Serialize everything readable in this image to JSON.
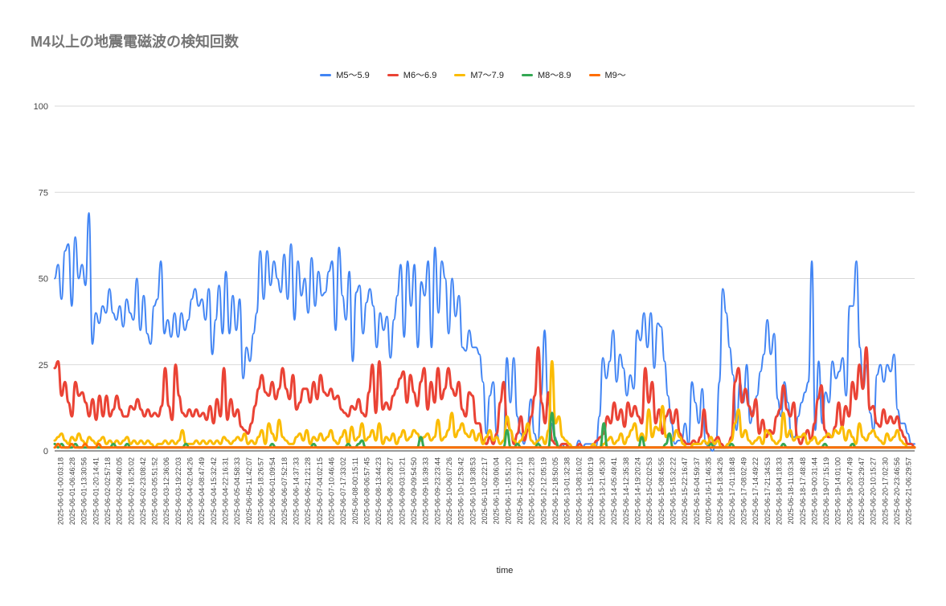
{
  "chart_data": {
    "type": "line",
    "title": "M4以上の地震電磁波の検知回数",
    "xlabel": "time",
    "ylabel": "",
    "ylim": [
      0,
      100
    ],
    "y_ticks": [
      0,
      25,
      50,
      75,
      100
    ],
    "legend_position": "top-center",
    "x_ticks": [
      "2025-06-01-00:03:18",
      "2025-06-01-06:46:28",
      "2025-06-01-13:30:56",
      "2025-06-01-20:14:41",
      "2025-06-02-02:57:18",
      "2025-06-02-09:40:05",
      "2025-06-02-16:25:02",
      "2025-06-02-23:08:42",
      "2025-06-03-05:51:52",
      "2025-06-03-12:36:06",
      "2025-06-03-19:22:03",
      "2025-06-04-02:04:26",
      "2025-06-04-08:47:49",
      "2025-06-04-15:32:42",
      "2025-06-04-22:16:31",
      "2025-06-05-04:58:33",
      "2025-06-05-11:42:07",
      "2025-06-05-18:26:57",
      "2025-06-06-01:09:54",
      "2025-06-06-07:52:18",
      "2025-06-06-14:37:33",
      "2025-06-06-21:21:28",
      "2025-06-07-04:02:15",
      "2025-06-07-10:46:46",
      "2025-06-07-17:33:02",
      "2025-06-08-00:15:11",
      "2025-06-08-06:57:45",
      "2025-06-08-13:44:23",
      "2025-06-08-20:28:27",
      "2025-06-09-03:10:21",
      "2025-06-09-09:54:50",
      "2025-06-09-16:39:33",
      "2025-06-09-23:23:44",
      "2025-06-10-06:07:26",
      "2025-06-10-12:53:42",
      "2025-06-10-19:38:53",
      "2025-06-11-02:22:17",
      "2025-06-11-09:06:04",
      "2025-06-11-15:51:20",
      "2025-06-11-22:37:10",
      "2025-06-12-05:21:28",
      "2025-06-12-12:05:19",
      "2025-06-12-18:50:05",
      "2025-06-13-01:32:38",
      "2025-06-13-08:16:02",
      "2025-06-13-15:00:19",
      "2025-06-13-21:45:30",
      "2025-06-14-05:49:41",
      "2025-06-14-12:35:38",
      "2025-06-14-19:20:24",
      "2025-06-15-02:02:53",
      "2025-06-15-08:45:55",
      "2025-06-15-15:32:22",
      "2025-06-15-22:16:47",
      "2025-06-16-04:59:37",
      "2025-06-16-11:46:35",
      "2025-06-16-18:34:26",
      "2025-06-17-01:18:48",
      "2025-06-17-08:02:49",
      "2025-06-17-14:49:22",
      "2025-06-17-21:34:53",
      "2025-06-18-04:18:33",
      "2025-06-18-11:03:34",
      "2025-06-18-17:48:48",
      "2025-06-19-00:31:44",
      "2025-06-19-07:15:19",
      "2025-06-19-14:01:00",
      "2025-06-19-20:47:49",
      "2025-06-20-03:29:47",
      "2025-06-20-10:15:27",
      "2025-06-20-17:02:30",
      "2025-06-20-23:46:56",
      "2025-06-21-06:29:57"
    ],
    "series": [
      {
        "name": "M5〜5.9",
        "color": "#4285f4",
        "values": [
          50,
          54,
          44,
          58,
          60,
          42,
          62,
          50,
          54,
          48,
          69,
          31,
          40,
          37,
          42,
          40,
          47,
          40,
          38,
          42,
          36,
          44,
          40,
          38,
          50,
          35,
          45,
          34,
          31,
          42,
          44,
          55,
          34,
          38,
          33,
          40,
          33,
          40,
          35,
          38,
          44,
          47,
          42,
          44,
          38,
          47,
          28,
          38,
          48,
          34,
          52,
          34,
          45,
          35,
          44,
          21,
          30,
          26,
          34,
          40,
          58,
          44,
          58,
          48,
          55,
          50,
          46,
          57,
          44,
          60,
          38,
          55,
          45,
          50,
          40,
          56,
          42,
          52,
          45,
          46,
          52,
          55,
          35,
          59,
          45,
          38,
          52,
          26,
          46,
          48,
          34,
          43,
          47,
          42,
          30,
          40,
          35,
          39,
          27,
          38,
          45,
          54,
          33,
          55,
          42,
          54,
          30,
          49,
          45,
          55,
          30,
          59,
          40,
          55,
          50,
          34,
          50,
          39,
          45,
          30,
          29,
          35,
          30,
          30,
          28,
          20,
          5,
          16,
          20,
          5,
          2,
          3,
          27,
          14,
          27,
          10,
          5,
          2,
          8,
          15,
          5,
          2,
          16,
          35,
          14,
          8,
          4,
          1,
          2,
          1,
          2,
          1,
          1,
          3,
          1,
          2,
          2,
          2,
          1,
          10,
          27,
          21,
          26,
          35,
          20,
          28,
          24,
          16,
          22,
          18,
          35,
          32,
          40,
          30,
          40,
          24,
          37,
          36,
          26,
          16,
          8,
          2,
          3,
          3,
          8,
          2,
          20,
          14,
          8,
          18,
          2,
          1,
          0,
          2,
          20,
          47,
          40,
          30,
          22,
          6,
          20,
          14,
          25,
          8,
          12,
          16,
          23,
          28,
          38,
          28,
          34,
          15,
          10,
          20,
          14,
          4,
          4,
          10,
          14,
          17,
          20,
          55,
          6,
          26,
          8,
          17,
          14,
          26,
          21,
          23,
          27,
          16,
          42,
          42,
          55,
          30,
          18,
          25,
          11,
          6,
          22,
          25,
          20,
          25,
          23,
          28,
          12,
          8,
          8,
          5,
          2,
          2
        ]
      },
      {
        "name": "M6〜6.9",
        "color": "#ea4335",
        "values": [
          24,
          26,
          16,
          20,
          14,
          10,
          20,
          16,
          17,
          14,
          10,
          15,
          9,
          16,
          10,
          16,
          10,
          12,
          16,
          12,
          10,
          10,
          13,
          12,
          15,
          12,
          10,
          12,
          10,
          11,
          10,
          13,
          24,
          13,
          9,
          25,
          16,
          11,
          10,
          12,
          10,
          12,
          10,
          11,
          9,
          13,
          8,
          15,
          10,
          24,
          9,
          15,
          10,
          12,
          7,
          6,
          5,
          8,
          13,
          18,
          22,
          17,
          16,
          20,
          15,
          18,
          24,
          18,
          15,
          22,
          12,
          14,
          18,
          18,
          14,
          20,
          15,
          22,
          17,
          16,
          18,
          15,
          16,
          12,
          11,
          10,
          13,
          12,
          15,
          11,
          10,
          17,
          25,
          11,
          26,
          12,
          14,
          12,
          16,
          18,
          21,
          23,
          14,
          22,
          17,
          13,
          20,
          24,
          12,
          20,
          14,
          24,
          15,
          18,
          24,
          18,
          16,
          20,
          12,
          10,
          17,
          16,
          8,
          8,
          3,
          2,
          4,
          2,
          5,
          14,
          20,
          8,
          6,
          2,
          5,
          10,
          3,
          6,
          10,
          16,
          30,
          14,
          8,
          17,
          3,
          2,
          1,
          2,
          2,
          1,
          1,
          1,
          2,
          1,
          1,
          1,
          2,
          3,
          4,
          5,
          10,
          8,
          14,
          9,
          12,
          7,
          14,
          10,
          13,
          10,
          8,
          24,
          14,
          20,
          8,
          12,
          5,
          10,
          12,
          8,
          12,
          5,
          3,
          2,
          2,
          3,
          2,
          4,
          12,
          5,
          2,
          3,
          4,
          2,
          1,
          2,
          4,
          20,
          24,
          14,
          18,
          13,
          10,
          15,
          5,
          9,
          4,
          6,
          5,
          10,
          12,
          19,
          12,
          10,
          14,
          4,
          2,
          4,
          6,
          3,
          8,
          15,
          19,
          6,
          4,
          4,
          7,
          14,
          7,
          13,
          10,
          20,
          15,
          25,
          18,
          30,
          12,
          13,
          8,
          7,
          12,
          8,
          10,
          8,
          10,
          6,
          4,
          2,
          2,
          1
        ]
      },
      {
        "name": "M7〜7.9",
        "color": "#fbbc04",
        "values": [
          3,
          4,
          5,
          3,
          2,
          4,
          3,
          5,
          3,
          2,
          4,
          3,
          2,
          3,
          4,
          2,
          3,
          2,
          3,
          2,
          3,
          4,
          2,
          3,
          2,
          3,
          2,
          3,
          2,
          1,
          2,
          2,
          3,
          2,
          3,
          2,
          3,
          6,
          2,
          2,
          2,
          3,
          2,
          3,
          2,
          3,
          2,
          3,
          2,
          4,
          3,
          2,
          3,
          4,
          3,
          5,
          2,
          3,
          2,
          4,
          6,
          2,
          8,
          5,
          3,
          9,
          4,
          3,
          2,
          2,
          4,
          5,
          3,
          6,
          2,
          4,
          3,
          5,
          3,
          4,
          6,
          3,
          2,
          4,
          6,
          2,
          7,
          3,
          4,
          8,
          3,
          4,
          6,
          3,
          8,
          2,
          4,
          3,
          5,
          2,
          4,
          6,
          3,
          4,
          6,
          5,
          3,
          4,
          5,
          3,
          4,
          9,
          3,
          4,
          6,
          11,
          4,
          6,
          8,
          5,
          4,
          6,
          3,
          5,
          2,
          4,
          6,
          3,
          4,
          2,
          3,
          10,
          6,
          3,
          2,
          3,
          5,
          8,
          3,
          2,
          3,
          4,
          2,
          6,
          26,
          8,
          10,
          4,
          3,
          2,
          1,
          1,
          1,
          1,
          1,
          1,
          2,
          1,
          1,
          2,
          3,
          4,
          2,
          3,
          5,
          2,
          4,
          6,
          8,
          3,
          5,
          3,
          12,
          4,
          7,
          6,
          13,
          4,
          5,
          3,
          6,
          4,
          2,
          1,
          1,
          2,
          2,
          2,
          3,
          2,
          4,
          2,
          3,
          1,
          1,
          2,
          3,
          8,
          12,
          4,
          6,
          3,
          2,
          3,
          4,
          2,
          6,
          5,
          3,
          2,
          3,
          11,
          4,
          6,
          3,
          4,
          4,
          5,
          2,
          3,
          4,
          2,
          3,
          4,
          5,
          4,
          6,
          5,
          7,
          3,
          6,
          4,
          2,
          8,
          4,
          3,
          5,
          6,
          4,
          3,
          2,
          5,
          3,
          4,
          6,
          3,
          2,
          1,
          1,
          1
        ]
      },
      {
        "name": "M8〜8.9",
        "color": "#34a853",
        "values": [
          2,
          1,
          2,
          1,
          1,
          1,
          2,
          1,
          1,
          1,
          1,
          1,
          1,
          1,
          1,
          1,
          1,
          2,
          1,
          1,
          1,
          2,
          1,
          1,
          1,
          1,
          1,
          1,
          1,
          1,
          1,
          1,
          1,
          1,
          1,
          1,
          1,
          1,
          2,
          1,
          1,
          1,
          1,
          1,
          1,
          1,
          1,
          1,
          1,
          1,
          1,
          1,
          1,
          1,
          1,
          1,
          1,
          1,
          1,
          1,
          1,
          1,
          1,
          2,
          1,
          1,
          1,
          1,
          1,
          1,
          1,
          1,
          1,
          1,
          1,
          2,
          1,
          1,
          1,
          1,
          1,
          1,
          1,
          1,
          1,
          2,
          1,
          1,
          2,
          3,
          1,
          1,
          1,
          1,
          1,
          1,
          1,
          1,
          1,
          1,
          1,
          1,
          1,
          1,
          1,
          1,
          4,
          1,
          1,
          1,
          1,
          1,
          1,
          1,
          1,
          1,
          1,
          1,
          1,
          1,
          1,
          1,
          1,
          1,
          1,
          1,
          1,
          1,
          1,
          1,
          1,
          6,
          1,
          1,
          2,
          1,
          1,
          1,
          1,
          1,
          2,
          1,
          1,
          1,
          11,
          3,
          1,
          1,
          1,
          1,
          1,
          1,
          1,
          1,
          1,
          1,
          1,
          1,
          1,
          8,
          1,
          1,
          1,
          1,
          1,
          1,
          1,
          1,
          1,
          1,
          4,
          1,
          1,
          1,
          1,
          1,
          1,
          2,
          5,
          1,
          1,
          1,
          1,
          1,
          1,
          1,
          1,
          1,
          1,
          1,
          2,
          1,
          1,
          1,
          1,
          1,
          2,
          1,
          1,
          1,
          1,
          1,
          1,
          1,
          1,
          1,
          1,
          1,
          1,
          1,
          1,
          2,
          1,
          1,
          1,
          1,
          1,
          1,
          1,
          1,
          1,
          1,
          1,
          2,
          1,
          1,
          1,
          1,
          1,
          1,
          1,
          2,
          1,
          1,
          1,
          1,
          1,
          1,
          1,
          1,
          1,
          1,
          1,
          1,
          1,
          1,
          1,
          1,
          1,
          1
        ]
      },
      {
        "name": "M9〜",
        "color": "#ff6d01",
        "values": [
          1,
          2,
          1,
          1,
          1,
          2,
          1,
          1,
          1,
          2,
          1,
          1,
          1,
          2,
          1,
          1,
          1,
          1,
          1,
          1,
          1,
          1,
          1,
          1,
          1,
          1,
          1,
          1,
          1,
          1,
          1,
          1,
          1,
          1,
          1,
          1,
          1,
          1,
          1,
          1,
          1,
          1,
          1,
          1,
          1,
          1,
          1,
          1,
          1,
          1,
          1,
          1,
          1,
          1,
          1,
          1,
          1,
          1,
          1,
          1,
          1,
          1,
          1,
          1,
          1,
          1,
          1,
          1,
          1,
          1,
          1,
          1,
          1,
          1,
          1,
          1,
          1,
          1,
          1,
          1,
          1,
          1,
          1,
          1,
          1,
          1,
          1,
          1,
          1,
          1,
          1,
          1,
          1,
          1,
          1,
          1,
          1,
          1,
          1,
          1,
          1,
          1,
          1,
          1,
          1,
          1,
          1,
          1,
          1,
          1,
          1,
          1,
          1,
          1,
          1,
          1,
          1,
          1,
          1,
          1,
          1,
          1,
          1,
          1,
          1,
          1,
          1,
          1,
          1,
          1,
          1,
          1,
          1,
          1,
          1,
          1,
          1,
          1,
          1,
          1,
          1,
          1,
          1,
          1,
          1,
          1,
          1,
          1,
          1,
          1,
          1,
          1,
          1,
          1,
          1,
          1,
          1,
          1,
          1,
          1,
          1,
          1,
          1,
          1,
          1,
          1,
          1,
          1,
          1,
          1,
          1,
          1,
          1,
          1,
          1,
          1,
          1,
          1,
          1,
          1,
          1,
          1,
          1,
          1,
          1,
          1,
          1,
          1,
          1,
          1,
          1,
          1,
          1,
          1,
          1,
          1,
          1,
          1,
          1,
          1,
          1,
          1,
          1,
          1,
          1,
          1,
          1,
          1,
          1,
          1,
          1,
          1,
          1,
          1,
          1,
          1,
          1,
          1,
          1,
          1,
          1,
          1,
          1,
          1,
          1,
          1,
          1,
          1,
          1,
          1,
          1,
          1,
          1,
          1,
          1,
          1,
          1,
          1,
          1,
          1,
          1,
          1,
          1,
          1,
          1,
          1,
          1,
          1,
          1,
          1,
          1,
          1,
          1,
          1,
          1
        ]
      }
    ]
  }
}
